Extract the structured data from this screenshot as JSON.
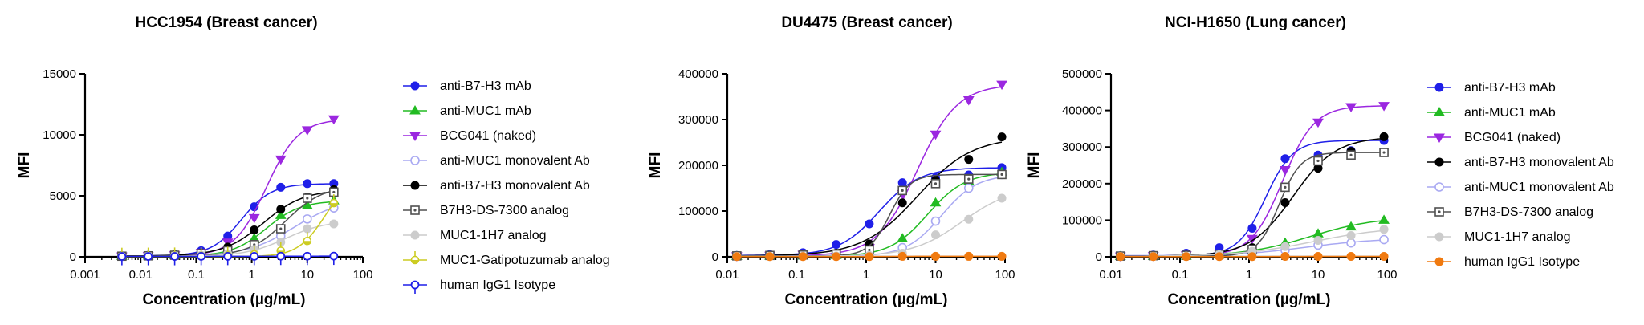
{
  "chart_data": [
    {
      "type": "scatter",
      "title": "HCC1954 (Breast cancer)",
      "xlabel": "Concentration (µg/mL)",
      "ylabel": "MFI",
      "xscale": "log",
      "xlim": [
        0.001,
        100
      ],
      "ylim": [
        0,
        15000
      ],
      "x_tick_labels": [
        "0.001",
        "0.01",
        "0.1",
        "1",
        "10",
        "100"
      ],
      "y_tick_labels": [
        "0",
        "5000",
        "10000",
        "15000"
      ],
      "legend_position": "right",
      "x": [
        0.0046,
        0.0137,
        0.041,
        0.123,
        0.37,
        1.11,
        3.33,
        10,
        30
      ],
      "series": [
        {
          "name": "anti-B7-H3 mAb",
          "color": "#1f1fe8",
          "marker": "circle-filled",
          "values": [
            80,
            120,
            200,
            500,
            1700,
            4100,
            5700,
            6000,
            6000
          ]
        },
        {
          "name": "anti-MUC1 mAb",
          "color": "#22bb22",
          "marker": "triangle-up-filled",
          "values": [
            50,
            70,
            120,
            250,
            600,
            1500,
            3400,
            4200,
            4600
          ]
        },
        {
          "name": "BCG041 (naked)",
          "color": "#9b27e0",
          "marker": "triangle-down-filled",
          "values": [
            60,
            100,
            150,
            350,
            1200,
            3200,
            8000,
            10400,
            11300
          ]
        },
        {
          "name": "anti-MUC1 monovalent Ab",
          "color": "#a9a9f2",
          "marker": "circle-open",
          "values": [
            40,
            60,
            90,
            150,
            300,
            800,
            1700,
            3100,
            4000
          ]
        },
        {
          "name": "anti-B7-H3 monovalent Ab",
          "color": "#000000",
          "marker": "circle-filled",
          "values": [
            70,
            110,
            170,
            300,
            800,
            2200,
            3900,
            4900,
            5500
          ]
        },
        {
          "name": "B7H3-DS-7300 analog",
          "color": "#505050",
          "marker": "square-dot",
          "values": [
            50,
            80,
            130,
            250,
            500,
            1000,
            2300,
            4800,
            5300
          ]
        },
        {
          "name": "MUC1-1H7 analog",
          "color": "#cccccc",
          "marker": "circle-filled",
          "values": [
            40,
            60,
            90,
            130,
            250,
            600,
            1200,
            2300,
            2700
          ]
        },
        {
          "name": "MUC1-Gatipotuzumab analog",
          "color": "#cccc22",
          "marker": "diamond-half",
          "values": [
            20,
            30,
            40,
            60,
            100,
            200,
            500,
            1300,
            4400
          ]
        },
        {
          "name": "human IgG1 Isotype",
          "color": "#1f1fe8",
          "marker": "circle-open-tail",
          "values": [
            30,
            30,
            30,
            40,
            40,
            40,
            50,
            50,
            60
          ]
        }
      ]
    },
    {
      "type": "scatter",
      "title": "DU4475 (Breast cancer)",
      "xlabel": "Concentration (µg/mL)",
      "ylabel": "MFI",
      "xscale": "log",
      "xlim": [
        0.01,
        100
      ],
      "ylim": [
        0,
        400000
      ],
      "x_tick_labels": [
        "0.01",
        "0.1",
        "1",
        "10",
        "100"
      ],
      "y_tick_labels": [
        "0",
        "100000",
        "200000",
        "300000",
        "400000"
      ],
      "x": [
        0.0137,
        0.041,
        0.123,
        0.37,
        1.11,
        3.33,
        10,
        30,
        90
      ],
      "series": [
        {
          "name": "anti-B7-H3 mAb",
          "color": "#1f1fe8",
          "marker": "circle-filled",
          "values": [
            3000,
            5000,
            9000,
            27000,
            72000,
            162000,
            173000,
            179000,
            195000
          ]
        },
        {
          "name": "anti-MUC1 mAb",
          "color": "#22bb22",
          "marker": "triangle-up-filled",
          "values": [
            1000,
            1500,
            2000,
            3000,
            7000,
            40000,
            118000,
            165000,
            185000
          ]
        },
        {
          "name": "BCG041 (naked)",
          "color": "#9b27e0",
          "marker": "triangle-down-filled",
          "values": [
            2000,
            3000,
            5000,
            8000,
            20000,
            138000,
            268000,
            343000,
            377000
          ]
        },
        {
          "name": "anti-MUC1 monovalent Ab",
          "color": "#a9a9f2",
          "marker": "circle-open",
          "values": [
            1000,
            1500,
            2000,
            2500,
            5000,
            20000,
            78000,
            150000,
            180000
          ]
        },
        {
          "name": "anti-B7-H3 monovalent Ab",
          "color": "#000000",
          "marker": "circle-filled",
          "values": [
            2000,
            3000,
            4000,
            8000,
            28000,
            118000,
            167000,
            213000,
            262000
          ]
        },
        {
          "name": "B7H3-DS-7300 analog",
          "color": "#505050",
          "marker": "square-dot",
          "values": [
            2000,
            3000,
            4000,
            6000,
            15000,
            145000,
            160000,
            170000,
            180000
          ]
        },
        {
          "name": "MUC1-1H7 analog",
          "color": "#cccccc",
          "marker": "circle-filled",
          "values": [
            1000,
            1000,
            1500,
            2000,
            3000,
            8000,
            48000,
            82000,
            128000
          ]
        },
        {
          "name": "human IgG1 Isotype",
          "color": "#f07a10",
          "marker": "circle-filled",
          "values": [
            500,
            500,
            500,
            500,
            500,
            1000,
            1000,
            1000,
            1000
          ]
        }
      ]
    },
    {
      "type": "scatter",
      "title": "NCI-H1650 (Lung cancer)",
      "xlabel": "Concentration (µg/mL)",
      "ylabel": "MFI",
      "xscale": "log",
      "xlim": [
        0.01,
        100
      ],
      "ylim": [
        0,
        500000
      ],
      "x_tick_labels": [
        "0.01",
        "0.1",
        "1",
        "10",
        "100"
      ],
      "y_tick_labels": [
        "0",
        "100000",
        "200000",
        "300000",
        "400000",
        "500000"
      ],
      "legend_position": "right",
      "x": [
        0.0137,
        0.041,
        0.123,
        0.37,
        1.11,
        3.33,
        10,
        30,
        90
      ],
      "series": [
        {
          "name": "anti-B7-H3 mAb",
          "color": "#1f1fe8",
          "marker": "circle-filled",
          "values": [
            3000,
            5000,
            10000,
            25000,
            78000,
            268000,
            278000,
            290000,
            318000
          ]
        },
        {
          "name": "anti-MUC1 mAb",
          "color": "#22bb22",
          "marker": "triangle-up-filled",
          "values": [
            1000,
            1500,
            2000,
            6000,
            20000,
            38000,
            63000,
            82000,
            100000
          ]
        },
        {
          "name": "BCG041 (naked)",
          "color": "#9b27e0",
          "marker": "triangle-down-filled",
          "values": [
            2000,
            3000,
            5000,
            10000,
            50000,
            238000,
            368000,
            410000,
            413000
          ]
        },
        {
          "name": "anti-B7-H3 monovalent Ab",
          "color": "#000000",
          "marker": "circle-filled",
          "values": [
            2000,
            3000,
            5000,
            8000,
            25000,
            148000,
            242000,
            288000,
            328000
          ]
        },
        {
          "name": "anti-MUC1 monovalent Ab",
          "color": "#a9a9f2",
          "marker": "circle-open",
          "values": [
            1000,
            1500,
            2000,
            5000,
            10000,
            18000,
            32000,
            38000,
            47000
          ]
        },
        {
          "name": "B7H3-DS-7300 analog",
          "color": "#505050",
          "marker": "square-dot",
          "values": [
            2000,
            3000,
            4000,
            7000,
            20000,
            190000,
            262000,
            278000,
            285000
          ]
        },
        {
          "name": "MUC1-1H7 analog",
          "color": "#cccccc",
          "marker": "circle-filled",
          "values": [
            1000,
            1500,
            2000,
            6000,
            15000,
            28000,
            45000,
            58000,
            75000
          ]
        },
        {
          "name": "human IgG1 Isotype",
          "color": "#f07a10",
          "marker": "circle-filled",
          "values": [
            500,
            500,
            500,
            500,
            500,
            1000,
            1000,
            1000,
            1000
          ]
        }
      ]
    }
  ]
}
